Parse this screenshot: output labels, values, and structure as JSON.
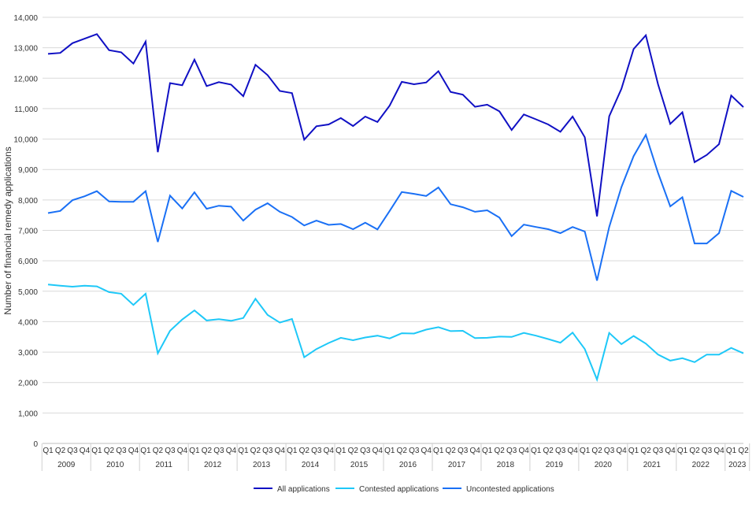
{
  "chart_data": {
    "type": "line",
    "title": "",
    "xlabel": "",
    "ylabel": "Number of financial remedy applications",
    "ylim": [
      0,
      14000
    ],
    "yticks": [
      "0",
      "1,000",
      "2,000",
      "3,000",
      "4,000",
      "5,000",
      "6,000",
      "7,000",
      "8,000",
      "9,000",
      "10,000",
      "11,000",
      "12,000",
      "13,000",
      "14,000"
    ],
    "grid": true,
    "legend_position": "bottom",
    "years": [
      "2009",
      "2010",
      "2011",
      "2012",
      "2013",
      "2014",
      "2015",
      "2016",
      "2017",
      "2018",
      "2019",
      "2020",
      "2021",
      "2022",
      "2023"
    ],
    "quarters": [
      "Q1",
      "Q2",
      "Q3",
      "Q4"
    ],
    "last_year_quarters": 2,
    "series": [
      {
        "name": "All applications",
        "color": "#1010c4",
        "values": [
          12800,
          12830,
          13150,
          13300,
          13450,
          12920,
          12850,
          12480,
          13200,
          9570,
          11840,
          11770,
          12610,
          11740,
          11870,
          11790,
          11410,
          12440,
          12100,
          11580,
          11510,
          9980,
          10420,
          10480,
          10690,
          10430,
          10740,
          10560,
          11100,
          11880,
          11800,
          11860,
          12230,
          11550,
          11460,
          11060,
          11130,
          10910,
          10300,
          10810,
          10650,
          10480,
          10240,
          10740,
          10060,
          7460,
          10750,
          11650,
          12960,
          13410,
          11800,
          10500,
          10880,
          9240,
          9480,
          9830,
          11430,
          11050
        ]
      },
      {
        "name": "Contested applications",
        "color": "#1ec8f8",
        "values": [
          5220,
          5180,
          5150,
          5180,
          5160,
          4970,
          4920,
          4550,
          4920,
          2960,
          3700,
          4070,
          4370,
          4040,
          4080,
          4030,
          4120,
          4750,
          4220,
          3970,
          4090,
          2830,
          3100,
          3300,
          3470,
          3390,
          3480,
          3540,
          3450,
          3620,
          3610,
          3740,
          3820,
          3690,
          3700,
          3460,
          3470,
          3510,
          3500,
          3630,
          3540,
          3430,
          3310,
          3640,
          3100,
          2100,
          3630,
          3260,
          3530,
          3280,
          2920,
          2720,
          2800,
          2670,
          2920,
          2920,
          3140,
          2960
        ]
      },
      {
        "name": "Uncontested applications",
        "color": "#1a70f5",
        "values": [
          7570,
          7640,
          7990,
          8120,
          8290,
          7950,
          7940,
          7940,
          8290,
          6620,
          8140,
          7720,
          8250,
          7710,
          7810,
          7780,
          7320,
          7680,
          7890,
          7610,
          7440,
          7160,
          7320,
          7180,
          7210,
          7040,
          7250,
          7030,
          7640,
          8260,
          8200,
          8130,
          8410,
          7860,
          7760,
          7610,
          7660,
          7420,
          6810,
          7190,
          7110,
          7040,
          6910,
          7110,
          6960,
          5350,
          7110,
          8420,
          9440,
          10140,
          8890,
          7790,
          8090,
          6570,
          6570,
          6910,
          8300,
          8100
        ]
      }
    ]
  }
}
